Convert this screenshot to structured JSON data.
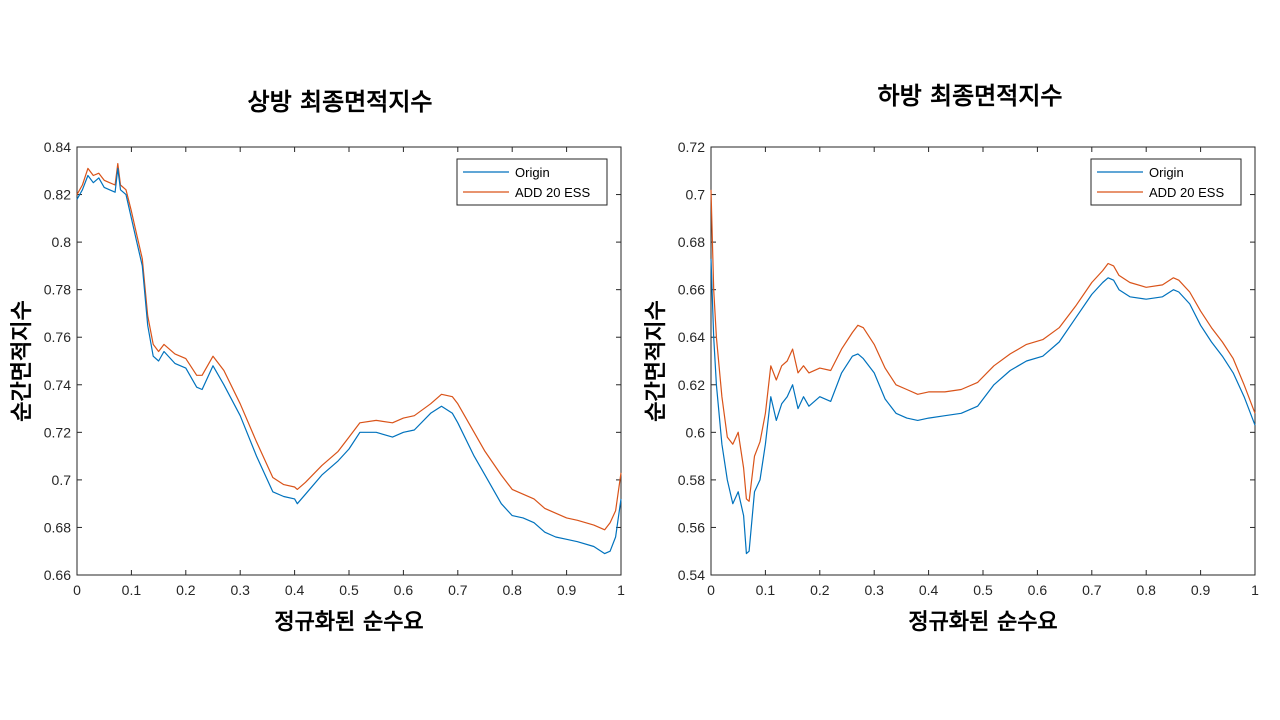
{
  "colors": {
    "origin": "#0072BD",
    "add": "#D95319",
    "axis": "#262626"
  },
  "chart_data": [
    {
      "type": "line",
      "title": "상방 최종면적지수",
      "xlabel": "정규화된 순수요",
      "ylabel": "순간면적지수",
      "xlim": [
        0,
        1
      ],
      "ylim": [
        0.66,
        0.84
      ],
      "xticks": [
        "0",
        "0.1",
        "0.2",
        "0.3",
        "0.4",
        "0.5",
        "0.6",
        "0.7",
        "0.8",
        "0.9",
        "1"
      ],
      "yticks": [
        "0.66",
        "0.68",
        "0.7",
        "0.72",
        "0.74",
        "0.76",
        "0.78",
        "0.8",
        "0.82",
        "0.84"
      ],
      "legend_position": "top-right",
      "series": [
        {
          "name": "Origin",
          "x": [
            0,
            0.01,
            0.02,
            0.03,
            0.04,
            0.05,
            0.06,
            0.07,
            0.075,
            0.08,
            0.09,
            0.1,
            0.11,
            0.12,
            0.13,
            0.14,
            0.15,
            0.16,
            0.18,
            0.2,
            0.22,
            0.23,
            0.25,
            0.27,
            0.3,
            0.33,
            0.36,
            0.38,
            0.4,
            0.405,
            0.42,
            0.45,
            0.48,
            0.5,
            0.52,
            0.55,
            0.58,
            0.6,
            0.62,
            0.65,
            0.67,
            0.69,
            0.7,
            0.73,
            0.75,
            0.78,
            0.8,
            0.82,
            0.84,
            0.86,
            0.88,
            0.9,
            0.92,
            0.95,
            0.97,
            0.98,
            0.99,
            1.0
          ],
          "y": [
            0.818,
            0.822,
            0.828,
            0.825,
            0.827,
            0.823,
            0.822,
            0.821,
            0.831,
            0.822,
            0.82,
            0.81,
            0.8,
            0.79,
            0.765,
            0.752,
            0.75,
            0.754,
            0.749,
            0.747,
            0.739,
            0.738,
            0.748,
            0.74,
            0.727,
            0.71,
            0.695,
            0.693,
            0.692,
            0.69,
            0.694,
            0.702,
            0.708,
            0.713,
            0.72,
            0.72,
            0.718,
            0.72,
            0.721,
            0.728,
            0.731,
            0.728,
            0.724,
            0.71,
            0.702,
            0.69,
            0.685,
            0.684,
            0.682,
            0.678,
            0.676,
            0.675,
            0.674,
            0.672,
            0.669,
            0.67,
            0.676,
            0.692
          ]
        },
        {
          "name": "ADD 20 ESS",
          "x": [
            0,
            0.01,
            0.02,
            0.03,
            0.04,
            0.05,
            0.06,
            0.07,
            0.075,
            0.08,
            0.09,
            0.1,
            0.11,
            0.12,
            0.13,
            0.14,
            0.15,
            0.16,
            0.18,
            0.2,
            0.22,
            0.23,
            0.25,
            0.27,
            0.3,
            0.33,
            0.36,
            0.38,
            0.4,
            0.405,
            0.42,
            0.45,
            0.48,
            0.5,
            0.52,
            0.55,
            0.58,
            0.6,
            0.62,
            0.65,
            0.67,
            0.69,
            0.7,
            0.73,
            0.75,
            0.78,
            0.8,
            0.82,
            0.84,
            0.86,
            0.88,
            0.9,
            0.92,
            0.95,
            0.97,
            0.98,
            0.99,
            1.0
          ],
          "y": [
            0.82,
            0.824,
            0.831,
            0.828,
            0.829,
            0.826,
            0.825,
            0.824,
            0.833,
            0.824,
            0.822,
            0.813,
            0.803,
            0.793,
            0.769,
            0.757,
            0.754,
            0.757,
            0.753,
            0.751,
            0.744,
            0.744,
            0.752,
            0.746,
            0.732,
            0.716,
            0.701,
            0.698,
            0.697,
            0.696,
            0.699,
            0.706,
            0.712,
            0.718,
            0.724,
            0.725,
            0.724,
            0.726,
            0.727,
            0.732,
            0.736,
            0.735,
            0.732,
            0.72,
            0.712,
            0.702,
            0.696,
            0.694,
            0.692,
            0.688,
            0.686,
            0.684,
            0.683,
            0.681,
            0.679,
            0.682,
            0.687,
            0.703
          ]
        }
      ]
    },
    {
      "type": "line",
      "title": "하방 최종면적지수",
      "xlabel": "정규화된 순수요",
      "ylabel": "순간면적지수",
      "xlim": [
        0,
        1
      ],
      "ylim": [
        0.54,
        0.72
      ],
      "xticks": [
        "0",
        "0.1",
        "0.2",
        "0.3",
        "0.4",
        "0.5",
        "0.6",
        "0.7",
        "0.8",
        "0.9",
        "1"
      ],
      "yticks": [
        "0.54",
        "0.56",
        "0.58",
        "0.6",
        "0.62",
        "0.64",
        "0.66",
        "0.68",
        "0.7",
        "0.72"
      ],
      "legend_position": "top-right",
      "series": [
        {
          "name": "Origin",
          "x": [
            0,
            0.005,
            0.01,
            0.02,
            0.03,
            0.04,
            0.05,
            0.06,
            0.065,
            0.07,
            0.08,
            0.09,
            0.1,
            0.11,
            0.12,
            0.13,
            0.14,
            0.15,
            0.16,
            0.17,
            0.18,
            0.2,
            0.22,
            0.24,
            0.26,
            0.27,
            0.28,
            0.3,
            0.32,
            0.34,
            0.36,
            0.38,
            0.4,
            0.43,
            0.46,
            0.49,
            0.52,
            0.55,
            0.58,
            0.61,
            0.64,
            0.67,
            0.7,
            0.72,
            0.73,
            0.74,
            0.75,
            0.77,
            0.8,
            0.83,
            0.85,
            0.86,
            0.88,
            0.9,
            0.92,
            0.94,
            0.96,
            0.98,
            1.0
          ],
          "y": [
            0.673,
            0.64,
            0.62,
            0.595,
            0.58,
            0.57,
            0.575,
            0.565,
            0.549,
            0.55,
            0.575,
            0.58,
            0.595,
            0.615,
            0.605,
            0.612,
            0.615,
            0.62,
            0.61,
            0.615,
            0.611,
            0.615,
            0.613,
            0.625,
            0.632,
            0.633,
            0.631,
            0.625,
            0.614,
            0.608,
            0.606,
            0.605,
            0.606,
            0.607,
            0.608,
            0.611,
            0.62,
            0.626,
            0.63,
            0.632,
            0.638,
            0.648,
            0.658,
            0.663,
            0.665,
            0.664,
            0.66,
            0.657,
            0.656,
            0.657,
            0.66,
            0.659,
            0.654,
            0.645,
            0.638,
            0.632,
            0.625,
            0.615,
            0.603
          ]
        },
        {
          "name": "ADD 20 ESS",
          "x": [
            0,
            0.005,
            0.01,
            0.02,
            0.03,
            0.04,
            0.05,
            0.06,
            0.065,
            0.07,
            0.08,
            0.09,
            0.1,
            0.11,
            0.12,
            0.13,
            0.14,
            0.15,
            0.16,
            0.17,
            0.18,
            0.2,
            0.22,
            0.24,
            0.26,
            0.27,
            0.28,
            0.3,
            0.32,
            0.34,
            0.36,
            0.38,
            0.4,
            0.43,
            0.46,
            0.49,
            0.52,
            0.55,
            0.58,
            0.61,
            0.64,
            0.67,
            0.7,
            0.72,
            0.73,
            0.74,
            0.75,
            0.77,
            0.8,
            0.83,
            0.85,
            0.86,
            0.88,
            0.9,
            0.92,
            0.94,
            0.96,
            0.98,
            1.0
          ],
          "y": [
            0.702,
            0.66,
            0.64,
            0.615,
            0.598,
            0.595,
            0.6,
            0.585,
            0.572,
            0.571,
            0.59,
            0.596,
            0.608,
            0.628,
            0.622,
            0.628,
            0.63,
            0.635,
            0.625,
            0.628,
            0.625,
            0.627,
            0.626,
            0.635,
            0.642,
            0.645,
            0.644,
            0.637,
            0.627,
            0.62,
            0.618,
            0.616,
            0.617,
            0.617,
            0.618,
            0.621,
            0.628,
            0.633,
            0.637,
            0.639,
            0.644,
            0.653,
            0.663,
            0.668,
            0.671,
            0.67,
            0.666,
            0.663,
            0.661,
            0.662,
            0.665,
            0.664,
            0.659,
            0.651,
            0.644,
            0.638,
            0.631,
            0.62,
            0.608
          ]
        }
      ]
    }
  ]
}
